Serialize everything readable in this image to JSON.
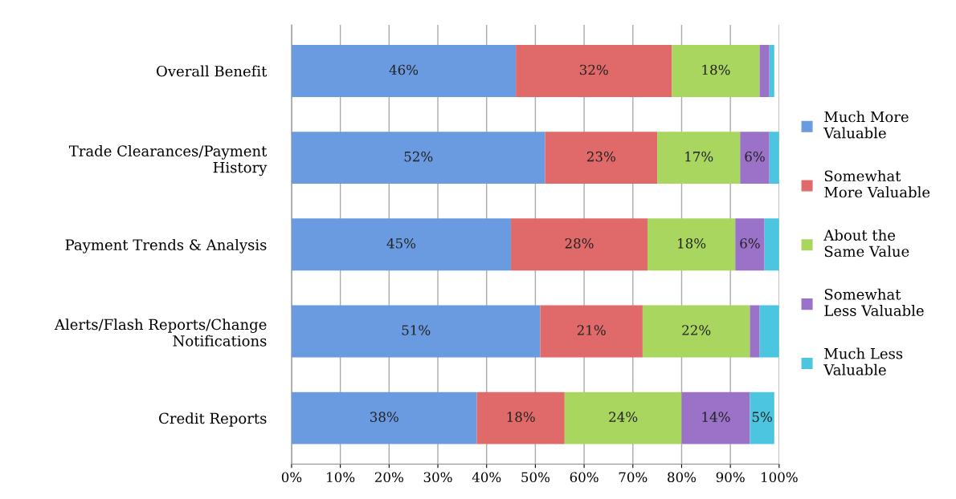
{
  "chart_data": {
    "type": "bar",
    "orientation": "horizontal",
    "stacked": true,
    "categories": [
      "Overall Benefit",
      "Trade Clearances/Payment\nHistory",
      "Payment Trends & Analysis",
      "Alerts/Flash Reports/Change\nNotifications",
      "Credit Reports"
    ],
    "series": [
      {
        "name": "Much More\nValuable",
        "color": "#6a9be0",
        "values": [
          46,
          52,
          45,
          51,
          38
        ],
        "value_labels": [
          "46%",
          "52%",
          "45%",
          "51%",
          "38%"
        ]
      },
      {
        "name": "Somewhat\nMore Valuable",
        "color": "#e06a6a",
        "values": [
          32,
          23,
          28,
          21,
          18
        ],
        "value_labels": [
          "32%",
          "23%",
          "28%",
          "21%",
          "18%"
        ]
      },
      {
        "name": "About the\nSame Value",
        "color": "#a8d65e",
        "values": [
          18,
          17,
          18,
          22,
          24
        ],
        "value_labels": [
          "18%",
          "17%",
          "18%",
          "22%",
          "24%"
        ]
      },
      {
        "name": "Somewhat\nLess Valuable",
        "color": "#9a72c8",
        "values": [
          2,
          6,
          6,
          2,
          14
        ],
        "value_labels": [
          null,
          "6%",
          "6%",
          null,
          "14%"
        ]
      },
      {
        "name": "Much Less\nValuable",
        "color": "#4cc6e0",
        "values": [
          1,
          2,
          3,
          4,
          5
        ],
        "value_labels": [
          null,
          null,
          null,
          null,
          "5%"
        ]
      }
    ],
    "xlim": [
      0,
      100
    ],
    "xticks": [
      {
        "value": 0,
        "label": "0%"
      },
      {
        "value": 10,
        "label": "10%"
      },
      {
        "value": 20,
        "label": "20%"
      },
      {
        "value": 30,
        "label": "30%"
      },
      {
        "value": 40,
        "label": "40%"
      },
      {
        "value": 50,
        "label": "50%"
      },
      {
        "value": 60,
        "label": "60%"
      },
      {
        "value": 70,
        "label": "70%"
      },
      {
        "value": 80,
        "label": "80%"
      },
      {
        "value": 90,
        "label": "90%"
      },
      {
        "value": 100,
        "label": "100%"
      }
    ],
    "grid": "x",
    "legend": "right"
  }
}
